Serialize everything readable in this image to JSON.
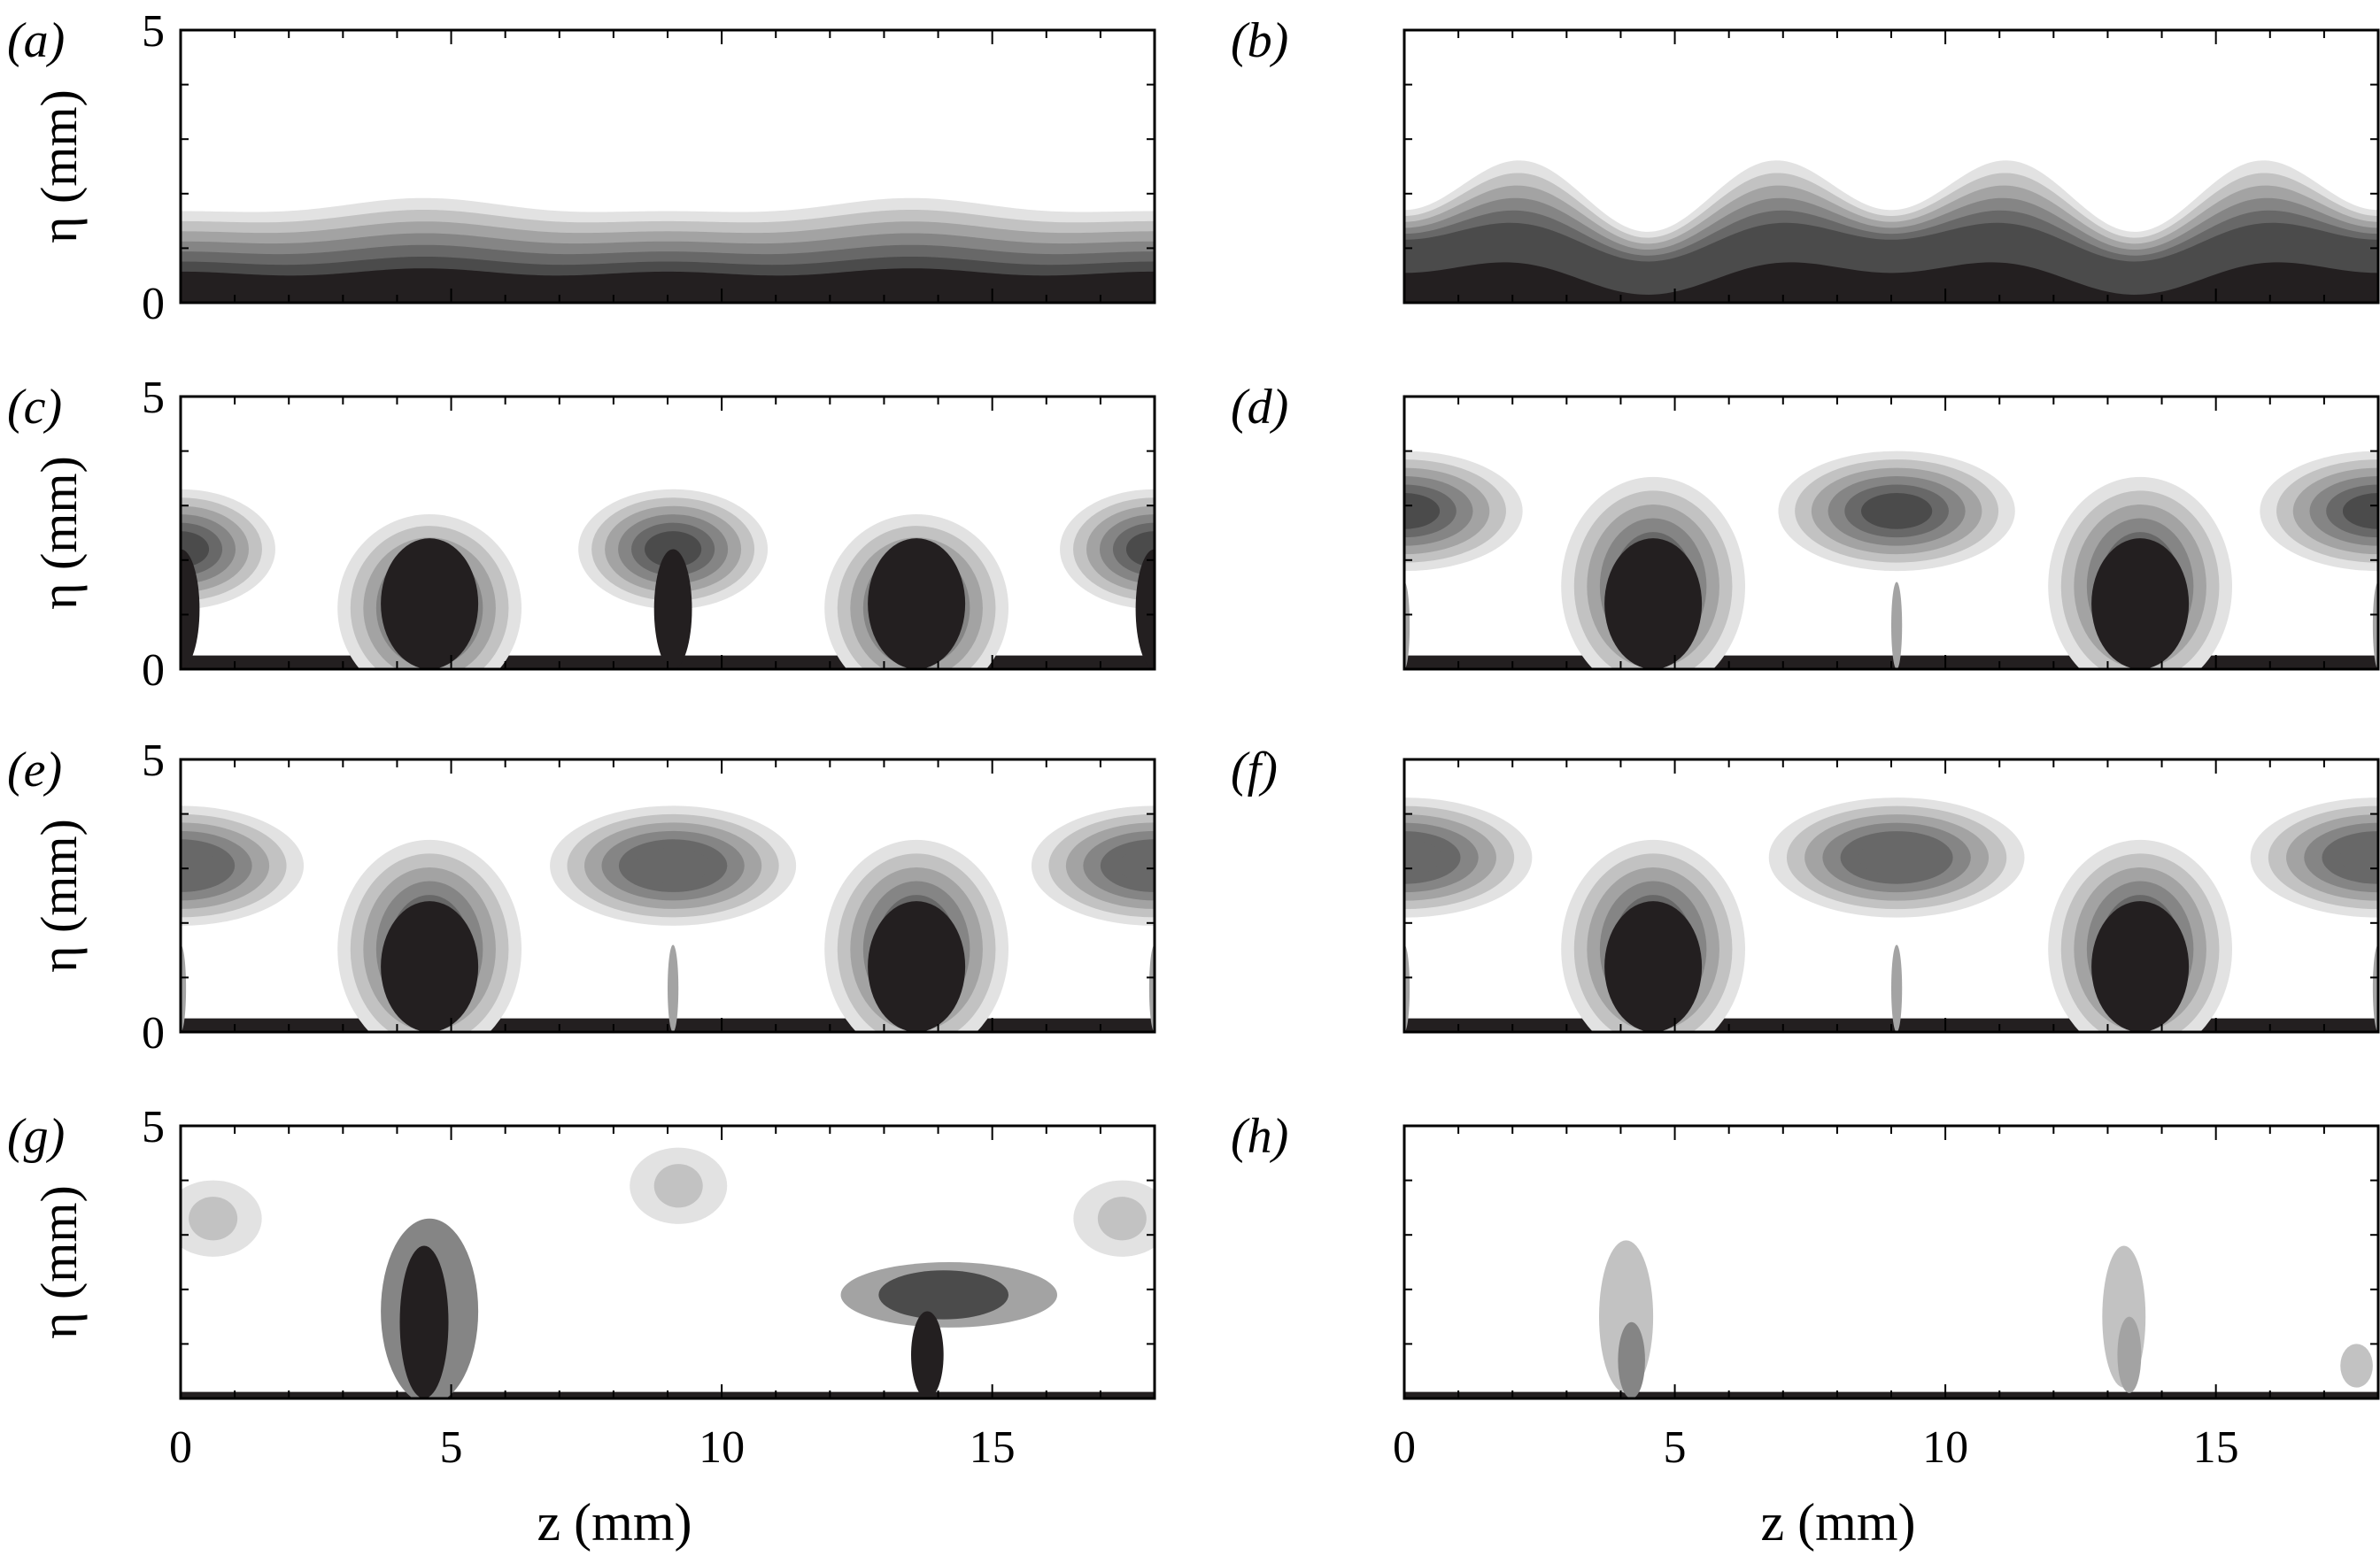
{
  "panels": [
    {
      "label": "(a)",
      "stage": 1,
      "ylabel": "η (mm)",
      "yticks": [
        "0",
        "5"
      ],
      "xticks": [],
      "xlabel": ""
    },
    {
      "label": "(b)",
      "stage": 2,
      "ylabel": "",
      "yticks": [],
      "xticks": [],
      "xlabel": ""
    },
    {
      "label": "(c)",
      "stage": 3,
      "ylabel": "η (mm)",
      "yticks": [
        "0",
        "5"
      ],
      "xticks": [],
      "xlabel": ""
    },
    {
      "label": "(d)",
      "stage": 4,
      "ylabel": "",
      "yticks": [],
      "xticks": [],
      "xlabel": ""
    },
    {
      "label": "(e)",
      "stage": 5,
      "ylabel": "η (mm)",
      "yticks": [
        "0",
        "5"
      ],
      "xticks": [],
      "xlabel": ""
    },
    {
      "label": "(f)",
      "stage": 6,
      "ylabel": "",
      "yticks": [],
      "xticks": [],
      "xlabel": ""
    },
    {
      "label": "(g)",
      "stage": 7,
      "ylabel": "η (mm)",
      "yticks": [
        "5"
      ],
      "xticks": [
        "0",
        "5",
        "10",
        "15"
      ],
      "xlabel": "z (mm)"
    },
    {
      "label": "(h)",
      "stage": 8,
      "ylabel": "",
      "yticks": [],
      "xticks": [
        "0",
        "5",
        "10",
        "15"
      ],
      "xlabel": "z (mm)"
    }
  ],
  "axes": {
    "z_range": [
      0,
      18
    ],
    "eta_range": [
      0,
      5
    ]
  },
  "colors": {
    "levels": [
      "#e2e2e2",
      "#c2c2c2",
      "#a3a3a3",
      "#858585",
      "#686868",
      "#4b4b4b",
      "#231f20"
    ],
    "frame": "#000000"
  }
}
